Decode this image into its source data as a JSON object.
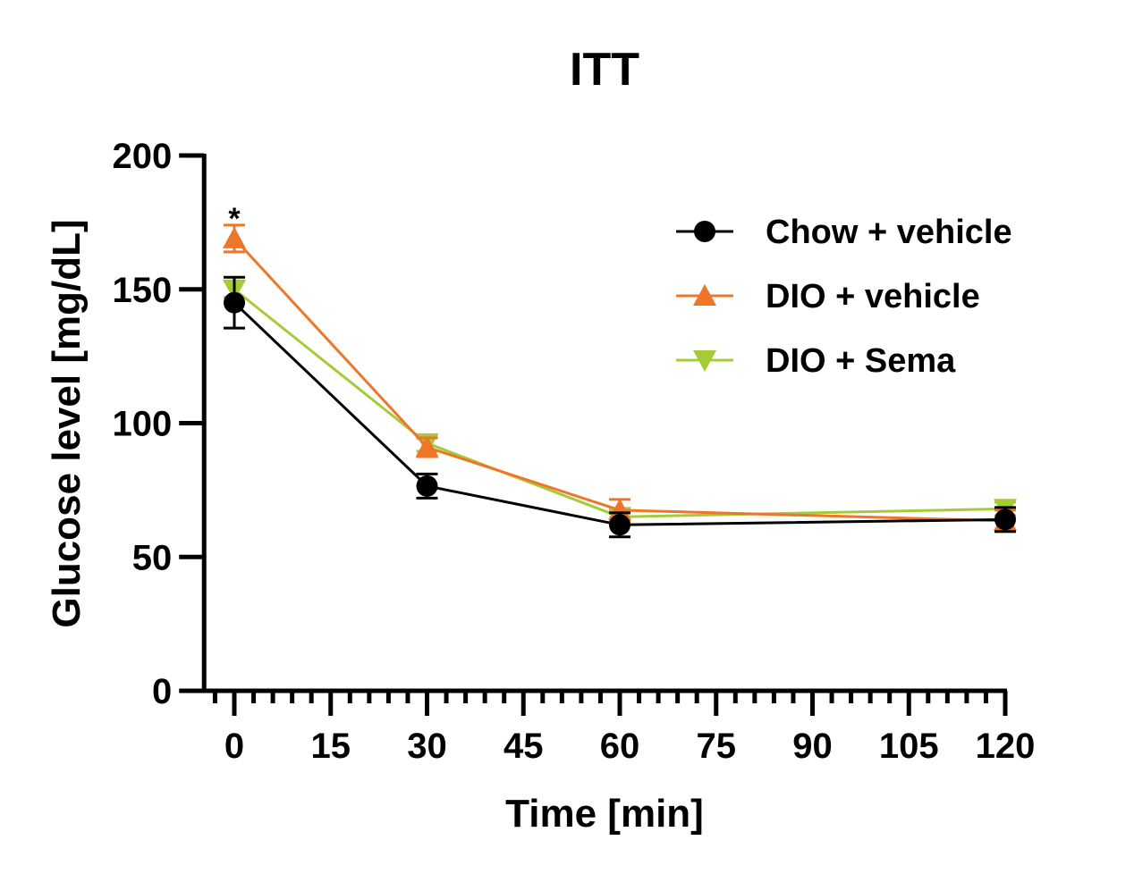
{
  "chart_data": {
    "type": "line",
    "title": "ITT",
    "xlabel": "Time [min]",
    "ylabel": "Glucose level [mg/dL]",
    "xlim": [
      -4.7,
      120
    ],
    "ylim": [
      0,
      200
    ],
    "x_ticks": [
      0,
      15,
      30,
      45,
      60,
      75,
      90,
      105,
      120
    ],
    "x_tick_labels": [
      "0",
      "15",
      "30",
      "45",
      "60",
      "75",
      "90",
      "105",
      "120"
    ],
    "x_minor_tick_step": 3,
    "y_ticks": [
      0,
      50,
      100,
      150,
      200
    ],
    "y_tick_labels": [
      "0",
      "50",
      "100",
      "150",
      "200"
    ],
    "grid": false,
    "legend_position": "top-right",
    "x": [
      0,
      30,
      60,
      120
    ],
    "series": [
      {
        "name": "Chow + vehicle",
        "color": "#000000",
        "marker": "circle",
        "values": [
          145,
          76.5,
          62,
          64
        ],
        "errors": [
          9.5,
          4.5,
          4.5,
          4.5
        ]
      },
      {
        "name": "DIO + vehicle",
        "color": "#ef7628",
        "marker": "triangle-up",
        "values": [
          169,
          91,
          67.5,
          63.5
        ],
        "errors": [
          5,
          3.5,
          4,
          4
        ]
      },
      {
        "name": "DIO + Sema",
        "color": "#a5cc38",
        "marker": "triangle-down",
        "values": [
          150,
          92.5,
          65,
          68
        ],
        "errors": [
          3,
          3,
          2.5,
          2.5
        ]
      }
    ],
    "annotations": [
      {
        "text": "*",
        "x": 0,
        "y": 180
      }
    ]
  }
}
